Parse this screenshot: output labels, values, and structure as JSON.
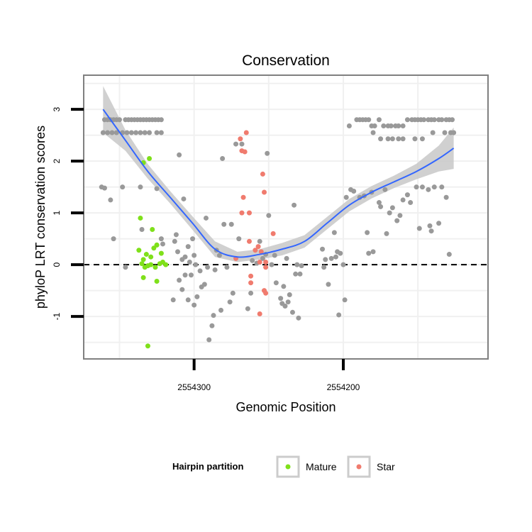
{
  "chart_data": {
    "type": "scatter",
    "title": "Conservation",
    "xlabel": "Genomic Position",
    "ylabel": "phyloP LRT conservation scores",
    "x_reversed": true,
    "xlim": [
      2554374,
      2554103
    ],
    "ylim": [
      -1.82,
      3.66
    ],
    "x_ticks": [
      2554300,
      2554200
    ],
    "x_tick_labels": [
      "2554300",
      "2554200"
    ],
    "y_ticks": [
      -1,
      0,
      1,
      2,
      3
    ],
    "y_tick_labels": [
      "-1",
      "0",
      "1",
      "2",
      "3"
    ],
    "reference_line": {
      "y": 0,
      "style": "dashed"
    },
    "legend": {
      "title": "Hairpin partition",
      "position": "bottom",
      "entries": [
        {
          "label": "Mature",
          "color": "#7FE01A"
        },
        {
          "label": "Star",
          "color": "#F07B6E"
        }
      ]
    },
    "colors": {
      "other": "#999999",
      "mature": "#7FE01A",
      "star": "#F07B6E",
      "smooth": "#3366FF",
      "band": "#C8C8C8"
    },
    "series": [
      {
        "name": "Other",
        "color": "#999999",
        "points": [
          [
            2554360,
            2.8
          ],
          [
            2554358,
            2.8
          ],
          [
            2554356,
            2.8
          ],
          [
            2554354,
            2.8
          ],
          [
            2554352,
            2.8
          ],
          [
            2554350,
            2.8
          ],
          [
            2554346,
            2.8
          ],
          [
            2554344,
            2.8
          ],
          [
            2554342,
            2.8
          ],
          [
            2554340,
            2.8
          ],
          [
            2554338,
            2.8
          ],
          [
            2554336,
            2.8
          ],
          [
            2554334,
            2.8
          ],
          [
            2554332,
            2.8
          ],
          [
            2554330,
            2.8
          ],
          [
            2554328,
            2.8
          ],
          [
            2554326,
            2.8
          ],
          [
            2554324,
            2.8
          ],
          [
            2554322,
            2.8
          ],
          [
            2554361,
            2.55
          ],
          [
            2554358,
            2.55
          ],
          [
            2554355,
            2.55
          ],
          [
            2554352,
            2.55
          ],
          [
            2554348,
            2.55
          ],
          [
            2554345,
            2.55
          ],
          [
            2554342,
            2.55
          ],
          [
            2554339,
            2.55
          ],
          [
            2554336,
            2.55
          ],
          [
            2554333,
            2.55
          ],
          [
            2554330,
            2.55
          ],
          [
            2554325,
            2.55
          ],
          [
            2554322,
            2.55
          ],
          [
            2554362,
            1.5
          ],
          [
            2554360,
            1.48
          ],
          [
            2554356,
            1.25
          ],
          [
            2554354,
            0.5
          ],
          [
            2554348,
            1.5
          ],
          [
            2554346,
            -0.05
          ],
          [
            2554336,
            1.5
          ],
          [
            2554335,
            0.68
          ],
          [
            2554325,
            1.47
          ],
          [
            2554322,
            0.5
          ],
          [
            2554321,
            0.4
          ],
          [
            2554310,
            2.12
          ],
          [
            2554312,
            0.58
          ],
          [
            2554313,
            0.45
          ],
          [
            2554311,
            0.25
          ],
          [
            2554308,
            0.1
          ],
          [
            2554307,
            1.27
          ],
          [
            2554306,
            0.15
          ],
          [
            2554304,
            0.35
          ],
          [
            2554303,
            0.05
          ],
          [
            2554302,
            -0.2
          ],
          [
            2554301,
            0.5
          ],
          [
            2554300,
            0.18
          ],
          [
            2554299,
            0.0
          ],
          [
            2554314,
            -0.68
          ],
          [
            2554310,
            -0.3
          ],
          [
            2554308,
            -0.48
          ],
          [
            2554306,
            -0.2
          ],
          [
            2554304,
            -0.68
          ],
          [
            2554300,
            -0.78
          ],
          [
            2554298,
            -0.62
          ],
          [
            2554296,
            -0.12
          ],
          [
            2554295,
            -0.43
          ],
          [
            2554293,
            -0.38
          ],
          [
            2554292,
            0.9
          ],
          [
            2554291,
            -0.05
          ],
          [
            2554290,
            -1.45
          ],
          [
            2554288,
            -1.18
          ],
          [
            2554287,
            -0.98
          ],
          [
            2554286,
            -0.1
          ],
          [
            2554285,
            0.28
          ],
          [
            2554283,
            0.18
          ],
          [
            2554282,
            -0.88
          ],
          [
            2554281,
            2.05
          ],
          [
            2554280,
            0.78
          ],
          [
            2554278,
            -0.05
          ],
          [
            2554276,
            -0.72
          ],
          [
            2554275,
            0.78
          ],
          [
            2554274,
            -0.55
          ],
          [
            2554272,
            2.33
          ],
          [
            2554270,
            0.5
          ],
          [
            2554268,
            2.33
          ],
          [
            2554264,
            -0.85
          ],
          [
            2554262,
            -0.55
          ],
          [
            2554261,
            0.08
          ],
          [
            2554258,
            0.03
          ],
          [
            2554256,
            0.45
          ],
          [
            2554254,
            0.12
          ],
          [
            2554252,
            0.2
          ],
          [
            2554251,
            2.15
          ],
          [
            2554250,
            0.95
          ],
          [
            2554248,
            0.0
          ],
          [
            2554246,
            0.18
          ],
          [
            2554245,
            -0.35
          ],
          [
            2554242,
            -0.65
          ],
          [
            2554241,
            -0.75
          ],
          [
            2554240,
            -0.42
          ],
          [
            2554239,
            -0.8
          ],
          [
            2554238,
            0.12
          ],
          [
            2554237,
            -0.72
          ],
          [
            2554236,
            -0.58
          ],
          [
            2554234,
            -0.92
          ],
          [
            2554233,
            1.15
          ],
          [
            2554232,
            -0.18
          ],
          [
            2554231,
            0.0
          ],
          [
            2554230,
            -1.03
          ],
          [
            2554229,
            -0.18
          ],
          [
            2554228,
            -0.02
          ],
          [
            2554214,
            0.3
          ],
          [
            2554213,
            -0.05
          ],
          [
            2554212,
            0.1
          ],
          [
            2554210,
            -0.38
          ],
          [
            2554208,
            0.12
          ],
          [
            2554206,
            0.62
          ],
          [
            2554205,
            0.15
          ],
          [
            2554204,
            0.25
          ],
          [
            2554203,
            -0.97
          ],
          [
            2554202,
            0.22
          ],
          [
            2554200,
            0.0
          ],
          [
            2554199,
            -0.68
          ],
          [
            2554198,
            1.3
          ],
          [
            2554196,
            2.68
          ],
          [
            2554195,
            1.45
          ],
          [
            2554193,
            1.42
          ],
          [
            2554191,
            2.8
          ],
          [
            2554189,
            2.8
          ],
          [
            2554187,
            2.8
          ],
          [
            2554185,
            2.8
          ],
          [
            2554183,
            2.8
          ],
          [
            2554181,
            2.68
          ],
          [
            2554179,
            2.68
          ],
          [
            2554176,
            2.8
          ],
          [
            2554173,
            2.68
          ],
          [
            2554170,
            2.68
          ],
          [
            2554168,
            2.68
          ],
          [
            2554165,
            2.68
          ],
          [
            2554163,
            2.68
          ],
          [
            2554160,
            2.68
          ],
          [
            2554157,
            2.8
          ],
          [
            2554154,
            2.8
          ],
          [
            2554152,
            2.8
          ],
          [
            2554150,
            2.8
          ],
          [
            2554148,
            2.8
          ],
          [
            2554146,
            2.8
          ],
          [
            2554143,
            2.8
          ],
          [
            2554141,
            2.8
          ],
          [
            2554139,
            2.8
          ],
          [
            2554136,
            2.8
          ],
          [
            2554134,
            2.8
          ],
          [
            2554131,
            2.8
          ],
          [
            2554129,
            2.8
          ],
          [
            2554127,
            2.8
          ],
          [
            2554180,
            2.55
          ],
          [
            2554175,
            2.43
          ],
          [
            2554170,
            2.43
          ],
          [
            2554167,
            2.43
          ],
          [
            2554163,
            2.43
          ],
          [
            2554160,
            2.43
          ],
          [
            2554152,
            2.43
          ],
          [
            2554147,
            2.43
          ],
          [
            2554140,
            2.55
          ],
          [
            2554132,
            2.55
          ],
          [
            2554128,
            2.55
          ],
          [
            2554126,
            2.55
          ],
          [
            2554189,
            1.3
          ],
          [
            2554186,
            1.33
          ],
          [
            2554184,
            0.62
          ],
          [
            2554183,
            0.22
          ],
          [
            2554181,
            1.4
          ],
          [
            2554180,
            0.25
          ],
          [
            2554176,
            1.2
          ],
          [
            2554175,
            1.12
          ],
          [
            2554172,
            1.45
          ],
          [
            2554171,
            0.6
          ],
          [
            2554169,
            1.0
          ],
          [
            2554167,
            1.1
          ],
          [
            2554164,
            0.85
          ],
          [
            2554162,
            0.95
          ],
          [
            2554160,
            1.25
          ],
          [
            2554157,
            1.35
          ],
          [
            2554155,
            1.2
          ],
          [
            2554151,
            1.5
          ],
          [
            2554149,
            0.7
          ],
          [
            2554147,
            1.5
          ],
          [
            2554143,
            1.45
          ],
          [
            2554142,
            0.75
          ],
          [
            2554141,
            0.65
          ],
          [
            2554139,
            1.5
          ],
          [
            2554136,
            0.8
          ],
          [
            2554134,
            1.5
          ],
          [
            2554131,
            1.3
          ],
          [
            2554129,
            0.2
          ]
        ]
      },
      {
        "name": "Mature",
        "color": "#7FE01A",
        "points": [
          [
            2554334,
            1.97
          ],
          [
            2554330,
            2.05
          ],
          [
            2554336,
            0.9
          ],
          [
            2554328,
            0.68
          ],
          [
            2554337,
            0.28
          ],
          [
            2554334,
            0.1
          ],
          [
            2554332,
            0.2
          ],
          [
            2554329,
            0.15
          ],
          [
            2554327,
            0.32
          ],
          [
            2554325,
            0.38
          ],
          [
            2554322,
            0.22
          ],
          [
            2554335,
            0.02
          ],
          [
            2554333,
            -0.05
          ],
          [
            2554331,
            -0.02
          ],
          [
            2554329,
            0.0
          ],
          [
            2554326,
            -0.05
          ],
          [
            2554323,
            0.02
          ],
          [
            2554321,
            0.05
          ],
          [
            2554319,
            0.0
          ],
          [
            2554325,
            0.38
          ],
          [
            2554334,
            -0.25
          ],
          [
            2554325,
            -0.32
          ],
          [
            2554331,
            -1.57
          ]
        ]
      },
      {
        "name": "Star",
        "color": "#F07B6E",
        "points": [
          [
            2554265,
            2.55
          ],
          [
            2554269,
            2.43
          ],
          [
            2554268,
            2.2
          ],
          [
            2554266,
            2.18
          ],
          [
            2554254,
            1.75
          ],
          [
            2554267,
            1.3
          ],
          [
            2554253,
            1.4
          ],
          [
            2554268,
            1.0
          ],
          [
            2554263,
            1.0
          ],
          [
            2554247,
            0.6
          ],
          [
            2554263,
            0.45
          ],
          [
            2554257,
            0.35
          ],
          [
            2554255,
            0.25
          ],
          [
            2554259,
            0.28
          ],
          [
            2554272,
            0.12
          ],
          [
            2554262,
            -0.22
          ],
          [
            2554262,
            -0.35
          ],
          [
            2554256,
            0.05
          ],
          [
            2554252,
            0.05
          ],
          [
            2554252,
            -0.05
          ],
          [
            2554256,
            -0.95
          ],
          [
            2554253,
            -0.5
          ],
          [
            2554252,
            -0.55
          ]
        ]
      }
    ],
    "smooth": {
      "x": [
        2554361,
        2554346,
        2554331,
        2554316,
        2554301,
        2554286,
        2554271,
        2554256,
        2554241,
        2554226,
        2554211,
        2554196,
        2554181,
        2554166,
        2554151,
        2554136,
        2554126
      ],
      "y": [
        3.0,
        2.4,
        1.8,
        1.3,
        0.8,
        0.3,
        0.15,
        0.2,
        0.3,
        0.45,
        0.8,
        1.15,
        1.4,
        1.6,
        1.8,
        2.05,
        2.25
      ],
      "se": [
        0.45,
        0.2,
        0.14,
        0.12,
        0.13,
        0.15,
        0.1,
        0.1,
        0.12,
        0.12,
        0.12,
        0.12,
        0.12,
        0.12,
        0.15,
        0.25,
        0.4
      ]
    }
  }
}
